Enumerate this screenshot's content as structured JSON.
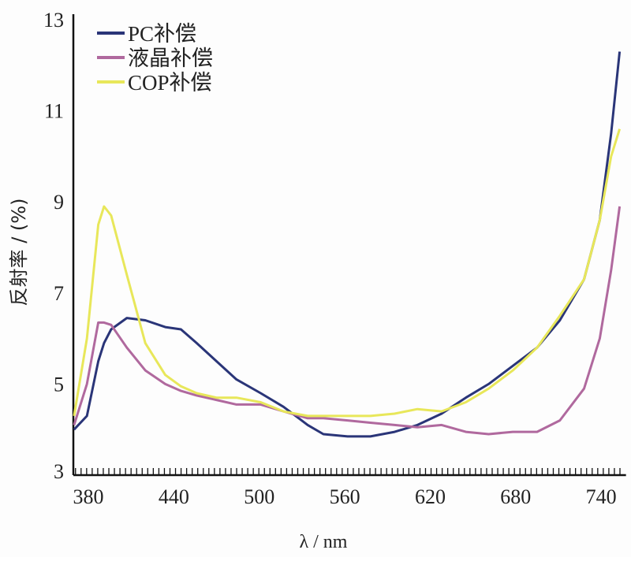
{
  "chart_data": {
    "type": "line",
    "title": "",
    "xlabel": "λ / nm",
    "ylabel": "反射率 / (%)",
    "xlim": [
      370,
      753
    ],
    "ylim": [
      3,
      13
    ],
    "xticks": [
      380,
      440,
      500,
      560,
      620,
      680,
      740
    ],
    "yticks": [
      3,
      5,
      7,
      9,
      11,
      13
    ],
    "grid": false,
    "legend_position": "top-left",
    "x": [
      370,
      379,
      387,
      391,
      396,
      407,
      420,
      434,
      445,
      456,
      470,
      484,
      501,
      517,
      534,
      545,
      562,
      578,
      595,
      611,
      628,
      645,
      661,
      678,
      695,
      711,
      728,
      739,
      747,
      753
    ],
    "series": [
      {
        "name": "PC补偿",
        "color": "#2a3578",
        "values": [
          4.0,
          4.3,
          5.5,
          5.9,
          6.2,
          6.45,
          6.4,
          6.25,
          6.2,
          5.9,
          5.5,
          5.1,
          4.8,
          4.5,
          4.1,
          3.9,
          3.85,
          3.85,
          3.95,
          4.1,
          4.35,
          4.7,
          5.0,
          5.4,
          5.8,
          6.4,
          7.3,
          8.6,
          10.5,
          12.3
        ]
      },
      {
        "name": "液晶补偿",
        "color": "#b0699e",
        "values": [
          4.1,
          5.0,
          6.35,
          6.35,
          6.3,
          5.8,
          5.3,
          5.0,
          4.85,
          4.75,
          4.65,
          4.55,
          4.55,
          4.4,
          4.25,
          4.25,
          4.2,
          4.15,
          4.1,
          4.05,
          4.1,
          3.95,
          3.9,
          3.95,
          3.95,
          4.2,
          4.9,
          6.0,
          7.5,
          8.9
        ]
      },
      {
        "name": "COP补偿",
        "color": "#e8e75a",
        "values": [
          4.3,
          6.0,
          8.5,
          8.9,
          8.7,
          7.4,
          5.9,
          5.2,
          4.95,
          4.8,
          4.7,
          4.7,
          4.6,
          4.4,
          4.3,
          4.3,
          4.3,
          4.3,
          4.35,
          4.45,
          4.4,
          4.6,
          4.9,
          5.3,
          5.8,
          6.5,
          7.3,
          8.6,
          10.0,
          10.6
        ]
      }
    ]
  }
}
